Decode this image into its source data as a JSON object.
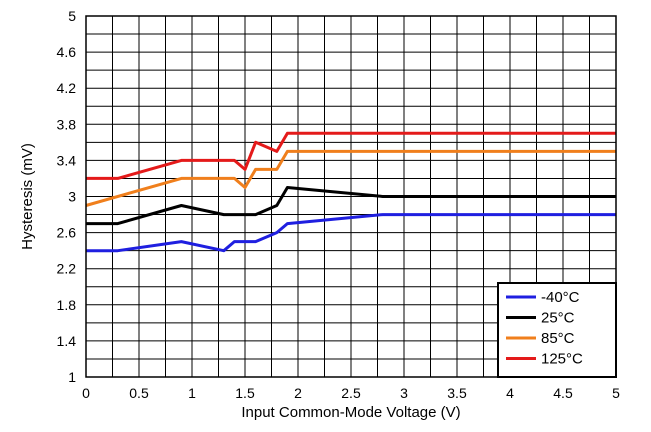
{
  "chart_data": {
    "type": "line",
    "xlabel": "Input Common-Mode Voltage (V)",
    "ylabel": "Hysteresis (mV)",
    "xlim": [
      0,
      5
    ],
    "ylim": [
      1,
      5
    ],
    "x_minor_step": 0.25,
    "y_minor_step": 0.2,
    "x_ticks": [
      "0",
      "0.5",
      "1",
      "1.5",
      "2",
      "2.5",
      "3",
      "3.5",
      "4",
      "4.5",
      "5"
    ],
    "y_ticks": [
      "1",
      "1.4",
      "1.8",
      "2.2",
      "2.6",
      "3",
      "3.4",
      "3.8",
      "4.2",
      "4.6",
      "5"
    ],
    "x_tick_values": [
      0,
      0.5,
      1,
      1.5,
      2,
      2.5,
      3,
      3.5,
      4,
      4.5,
      5
    ],
    "y_tick_values": [
      1,
      1.4,
      1.8,
      2.2,
      2.6,
      3,
      3.4,
      3.8,
      4.2,
      4.6,
      5
    ],
    "grid": true,
    "legend_position": "bottom-right",
    "series": [
      {
        "name": "-40°C",
        "color": "#1f1fe0",
        "points": [
          [
            0,
            2.4
          ],
          [
            0.3,
            2.4
          ],
          [
            0.9,
            2.5
          ],
          [
            1.3,
            2.4
          ],
          [
            1.4,
            2.5
          ],
          [
            1.6,
            2.5
          ],
          [
            1.8,
            2.6
          ],
          [
            1.9,
            2.7
          ],
          [
            2.8,
            2.8
          ],
          [
            5,
            2.8
          ]
        ]
      },
      {
        "name": "25°C",
        "color": "#000000",
        "points": [
          [
            0,
            2.7
          ],
          [
            0.3,
            2.7
          ],
          [
            0.9,
            2.9
          ],
          [
            1.3,
            2.8
          ],
          [
            1.6,
            2.8
          ],
          [
            1.8,
            2.9
          ],
          [
            1.9,
            3.1
          ],
          [
            2.8,
            3.0
          ],
          [
            5,
            3.0
          ]
        ]
      },
      {
        "name": "85°C",
        "color": "#f07f1c",
        "points": [
          [
            0,
            2.9
          ],
          [
            0.9,
            3.2
          ],
          [
            1.4,
            3.2
          ],
          [
            1.5,
            3.1
          ],
          [
            1.6,
            3.3
          ],
          [
            1.8,
            3.3
          ],
          [
            1.9,
            3.5
          ],
          [
            5,
            3.5
          ]
        ]
      },
      {
        "name": "125°C",
        "color": "#e41a1a",
        "points": [
          [
            0,
            3.2
          ],
          [
            0.3,
            3.2
          ],
          [
            0.9,
            3.4
          ],
          [
            1.4,
            3.4
          ],
          [
            1.5,
            3.3
          ],
          [
            1.6,
            3.6
          ],
          [
            1.8,
            3.5
          ],
          [
            1.9,
            3.7
          ],
          [
            5,
            3.7
          ]
        ]
      }
    ]
  }
}
